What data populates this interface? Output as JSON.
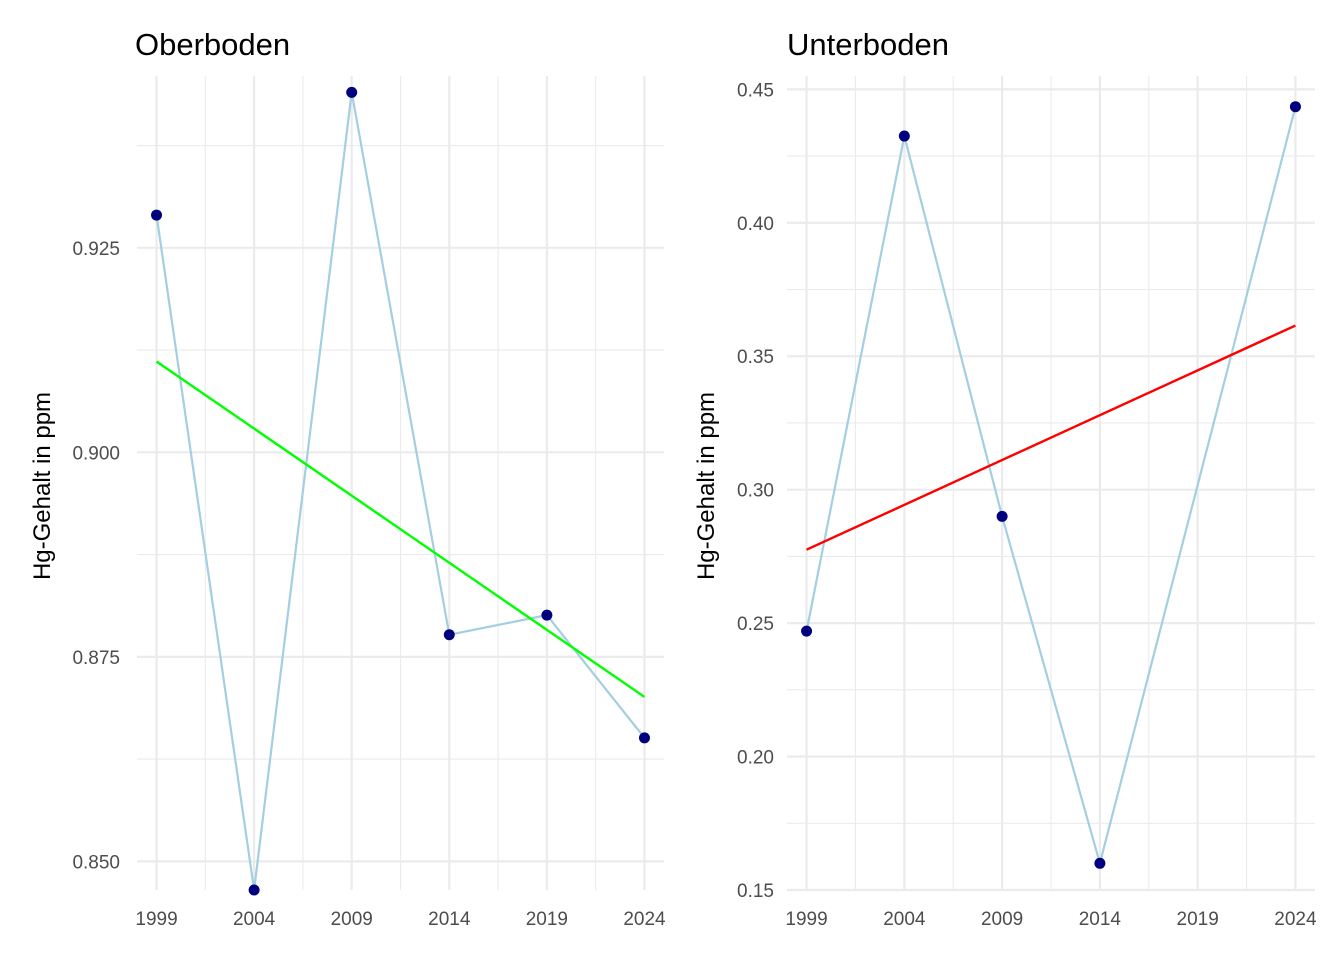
{
  "chart_data": [
    {
      "type": "line",
      "title": "Oberboden",
      "xlabel": "",
      "ylabel": "Hg-Gehalt in ppm",
      "xlim": [
        1998,
        2025
      ],
      "ylim": [
        0.8465,
        0.946
      ],
      "x_ticks": [
        1999,
        2004,
        2009,
        2014,
        2019,
        2024
      ],
      "x_tick_labels": [
        "1999",
        "2004",
        "2009",
        "2014",
        "2019",
        "2024"
      ],
      "y_ticks": [
        0.85,
        0.875,
        0.9,
        0.925
      ],
      "y_tick_labels": [
        "0.850",
        "0.875",
        "0.900",
        "0.925"
      ],
      "y_minor_ticks": [
        0.8625,
        0.8875,
        0.9125,
        0.9375
      ],
      "grid": true,
      "series": [
        {
          "kind": "line+points",
          "line_color": "#a3cfe0",
          "point_color": "#00007f",
          "x": [
            1999,
            2004,
            2009,
            2014,
            2019,
            2024
          ],
          "y": [
            0.929,
            0.8465,
            0.944,
            0.8777,
            0.8801,
            0.8651
          ]
        },
        {
          "kind": "trend",
          "line_color": "#00ff00",
          "x": [
            1999,
            2024
          ],
          "y": [
            0.9111,
            0.8701
          ]
        }
      ]
    },
    {
      "type": "line",
      "title": "Unterboden",
      "xlabel": "",
      "ylabel": "Hg-Gehalt in ppm",
      "xlim": [
        1998,
        2025
      ],
      "ylim": [
        0.15,
        0.455
      ],
      "x_ticks": [
        1999,
        2004,
        2009,
        2014,
        2019,
        2024
      ],
      "x_tick_labels": [
        "1999",
        "2004",
        "2009",
        "2014",
        "2019",
        "2024"
      ],
      "y_ticks": [
        0.15,
        0.2,
        0.25,
        0.3,
        0.35,
        0.4,
        0.45
      ],
      "y_tick_labels": [
        "0.15",
        "0.20",
        "0.25",
        "0.30",
        "0.35",
        "0.40",
        "0.45"
      ],
      "y_minor_ticks": [
        0.175,
        0.225,
        0.275,
        0.325,
        0.375,
        0.425
      ],
      "grid": true,
      "series": [
        {
          "kind": "line+points",
          "line_color": "#a3cfe0",
          "point_color": "#00007f",
          "x": [
            1999,
            2004,
            2009,
            2014,
            2024
          ],
          "y": [
            0.247,
            0.4325,
            0.29,
            0.16,
            0.4435
          ]
        },
        {
          "kind": "trend",
          "line_color": "#ff0000",
          "x": [
            1999,
            2024
          ],
          "y": [
            0.2775,
            0.3615
          ]
        }
      ]
    }
  ]
}
